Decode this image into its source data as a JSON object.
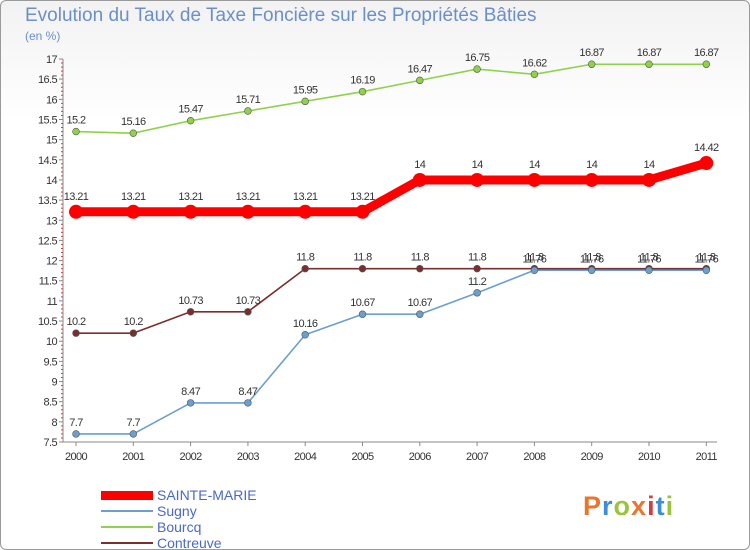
{
  "header": {
    "title": "Evolution du Taux de Taxe Foncière sur les Propriétés Bâties",
    "unit_label": "(en %)"
  },
  "logo": {
    "text": "Proxiti",
    "colors": [
      "#e8772e",
      "#3c8fd6",
      "#9bc43c",
      "#e8772e",
      "#d63c3c",
      "#3c8fd6",
      "#9bc43c"
    ]
  },
  "chart_data": {
    "type": "line",
    "title": "Evolution du Taux de Taxe Foncière sur les Propriétés Bâties",
    "ylabel": "(en %)",
    "xlabel": "",
    "x": [
      "2000",
      "2001",
      "2002",
      "2003",
      "2004",
      "2005",
      "2006",
      "2007",
      "2008",
      "2009",
      "2010",
      "2011"
    ],
    "ylim": [
      7.5,
      17
    ],
    "yticks": [
      "7.5",
      "8",
      "8.5",
      "9",
      "9.5",
      "10",
      "10.5",
      "11",
      "11.5",
      "12",
      "12.5",
      "13",
      "13.5",
      "14",
      "14.5",
      "15",
      "15.5",
      "16",
      "16.5",
      "17"
    ],
    "grid": false,
    "legend_position": "bottom-left",
    "series": [
      {
        "name": "SAINTE-MARIE",
        "color": "#ff0000",
        "values": [
          13.21,
          13.21,
          13.21,
          13.21,
          13.21,
          13.21,
          14,
          14,
          14,
          14,
          14,
          14.42
        ],
        "labels": [
          "13.21",
          "13.21",
          "13.21",
          "13.21",
          "13.21",
          "13.21",
          "14",
          "14",
          "14",
          "14",
          "14",
          "14.42"
        ]
      },
      {
        "name": "Sugny",
        "color": "#6a9fcf",
        "values": [
          7.7,
          7.7,
          8.47,
          8.47,
          10.16,
          10.67,
          10.67,
          11.2,
          11.76,
          11.76,
          11.76,
          11.76
        ],
        "labels": [
          "7.7",
          "7.7",
          "8.47",
          "8.47",
          "10.16",
          "10.67",
          "10.67",
          "11.2",
          "11.76",
          "11.76",
          "11.76",
          "11.76"
        ]
      },
      {
        "name": "Bourcq",
        "color": "#8fd24a",
        "values": [
          15.2,
          15.16,
          15.47,
          15.71,
          15.95,
          16.19,
          16.47,
          16.75,
          16.62,
          16.87,
          16.87,
          16.87
        ],
        "labels": [
          "15.2",
          "15.16",
          "15.47",
          "15.71",
          "15.95",
          "16.19",
          "16.47",
          "16.75",
          "16.62",
          "16.87",
          "16.87",
          "16.87"
        ]
      },
      {
        "name": "Contreuve",
        "color": "#7a2f2f",
        "values": [
          10.2,
          10.2,
          10.73,
          10.73,
          11.8,
          11.8,
          11.8,
          11.8,
          11.8,
          11.8,
          11.8,
          11.8
        ],
        "labels": [
          "10.2",
          "10.2",
          "10.73",
          "10.73",
          "11.8",
          "11.8",
          "11.8",
          "11.8",
          "11.8",
          "11.8",
          "11.8",
          "11.8"
        ]
      }
    ]
  }
}
